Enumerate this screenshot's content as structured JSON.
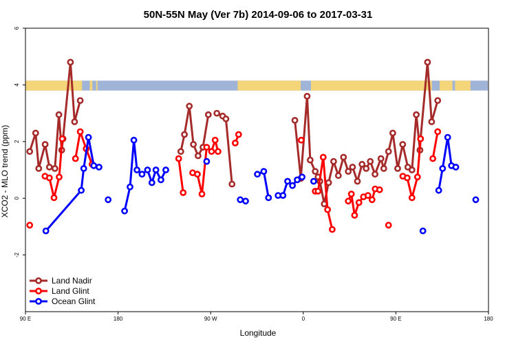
{
  "chart_data": {
    "type": "line",
    "title": "50N-55N May (Ver 7b)   2014-09-06 to 2017-03-31",
    "xlabel": "Longitude",
    "ylabel": "XCO2 - MLO trend (ppm)",
    "xlim": [
      90,
      450
    ],
    "ylim": [
      -4,
      6
    ],
    "grid": false,
    "legend_position": "bottom-left",
    "x_ticks": [
      {
        "value": 90,
        "label": "90 E"
      },
      {
        "value": 162,
        "label": "180"
      },
      {
        "value": 234,
        "label": "90 W"
      },
      {
        "value": 306,
        "label": "0"
      },
      {
        "value": 378,
        "label": "90 E"
      },
      {
        "value": 450,
        "label": "180"
      }
    ],
    "y_ticks": [
      {
        "value": -2,
        "label": "-2"
      },
      {
        "value": 0,
        "label": "0"
      },
      {
        "value": 2,
        "label": "2"
      },
      {
        "value": 4,
        "label": "4"
      },
      {
        "value": 6,
        "label": "6"
      }
    ],
    "band": {
      "y_min": 3.8,
      "y_max": 4.15,
      "land_color": "#f5d57a",
      "ocean_color": "#9fb4d6"
    },
    "series": [
      {
        "name": "Land Nadir",
        "color": "#a52a2a",
        "segments": [
          [
            [
              93.3,
              1.65
            ],
            [
              97.9,
              2.3
            ],
            [
              100.3,
              1.05
            ],
            [
              105.3,
              1.9
            ],
            [
              108.6,
              1.1
            ],
            [
              112.9,
              1.05
            ],
            [
              116.0,
              2.95
            ],
            [
              118.2,
              1.7
            ],
            [
              119.2,
              2.1
            ],
            [
              125.0,
              4.8
            ],
            [
              128.2,
              2.7
            ],
            [
              132.6,
              3.45
            ]
          ],
          [
            [
              210.8,
              1.65
            ],
            [
              213.6,
              2.25
            ],
            [
              217.4,
              3.25
            ],
            [
              220.6,
              1.9
            ],
            [
              224.2,
              1.5
            ],
            [
              228.0,
              1.8
            ],
            [
              232.2,
              2.95
            ]
          ],
          [
            [
              238.8,
              3.0
            ],
            [
              243.3,
              2.9
            ],
            [
              245.9,
              2.8
            ],
            [
              250.6,
              0.5
            ]
          ],
          [
            [
              299.5,
              2.75
            ],
            [
              304.1,
              0.7
            ],
            [
              309.0,
              3.6
            ],
            [
              311.4,
              1.35
            ],
            [
              315.3,
              0.95
            ],
            [
              317.5,
              0.75
            ],
            [
              318.9,
              0.6
            ],
            [
              322.3,
              -0.2
            ],
            [
              325.7,
              0.55
            ],
            [
              329.6,
              1.3
            ],
            [
              333.3,
              0.8
            ],
            [
              337.3,
              1.45
            ],
            [
              341.0,
              0.95
            ],
            [
              344.3,
              1.1
            ],
            [
              348.1,
              0.6
            ],
            [
              351.7,
              1.2
            ],
            [
              354.9,
              1.05
            ],
            [
              358.1,
              1.3
            ],
            [
              361.8,
              0.85
            ],
            [
              366.4,
              1.4
            ],
            [
              368.6,
              1.05
            ],
            [
              372.3,
              1.65
            ],
            [
              375.6,
              2.3
            ],
            [
              379.4,
              1.05
            ],
            [
              383.3,
              1.9
            ],
            [
              387.3,
              1.1
            ],
            [
              390.5,
              1.0
            ],
            [
              393.9,
              2.95
            ],
            [
              396.7,
              1.7
            ],
            [
              397.2,
              2.1
            ],
            [
              402.6,
              4.8
            ],
            [
              405.8,
              2.7
            ],
            [
              410.5,
              3.45
            ]
          ]
        ]
      },
      {
        "name": "Land Glint",
        "color": "#ff0000",
        "segments": [
          [
            [
              93.3,
              -0.95
            ]
          ],
          [
            [
              105.2,
              0.78
            ],
            [
              108.6,
              0.72
            ],
            [
              112.2,
              0.02
            ],
            [
              116.2,
              0.75
            ],
            [
              118.6,
              2.1
            ]
          ],
          [
            [
              128.9,
              1.4
            ],
            [
              132.6,
              2.35
            ],
            [
              137.2,
              1.75
            ],
            [
              141.8,
              1.2
            ]
          ],
          [
            [
              209.1,
              1.4
            ],
            [
              212.6,
              0.2
            ]
          ],
          [
            [
              220.0,
              0.9
            ],
            [
              223.7,
              0.85
            ],
            [
              227.2,
              0.15
            ],
            [
              230.9,
              1.8
            ],
            [
              234.7,
              1.65
            ],
            [
              237.5,
              2.05
            ],
            [
              239.7,
              1.65
            ]
          ],
          [
            [
              253.1,
              1.95
            ],
            [
              255.7,
              2.25
            ]
          ],
          [
            [
              304.4,
              2.05
            ]
          ],
          [
            [
              315.3,
              0.25
            ],
            [
              317.5,
              0.25
            ],
            [
              321.5,
              1.45
            ],
            [
              324.9,
              -0.4
            ],
            [
              328.5,
              -1.1
            ]
          ],
          [
            [
              341.0,
              -0.1
            ],
            [
              343.4,
              0.15
            ],
            [
              345.9,
              -0.6
            ],
            [
              349.3,
              -0.15
            ],
            [
              352.8,
              0.05
            ],
            [
              356.3,
              0.1
            ],
            [
              359.5,
              -0.05
            ],
            [
              361.9,
              0.33
            ],
            [
              365.3,
              0.3
            ]
          ],
          [
            [
              372.3,
              -0.95
            ]
          ],
          [
            [
              383.4,
              0.78
            ],
            [
              386.8,
              0.72
            ],
            [
              390.5,
              0.02
            ],
            [
              394.8,
              0.75
            ],
            [
              397.2,
              2.1
            ]
          ],
          [
            [
              406.7,
              1.4
            ],
            [
              410.5,
              2.35
            ]
          ]
        ]
      },
      {
        "name": "Ocean Glint",
        "color": "#0000ff",
        "segments": [
          [
            [
              105.9,
              -1.15
            ],
            [
              133.4,
              0.28
            ],
            [
              135.3,
              1.05
            ],
            [
              139.0,
              2.15
            ],
            [
              143.1,
              1.15
            ],
            [
              147.2,
              1.1
            ]
          ],
          [
            [
              154.3,
              -0.05
            ]
          ],
          [
            [
              167.1,
              -0.45
            ],
            [
              171.3,
              0.4
            ],
            [
              174.3,
              2.05
            ],
            [
              176.7,
              1.0
            ],
            [
              180.6,
              0.85
            ],
            [
              184.9,
              1.0
            ],
            [
              188.3,
              0.55
            ],
            [
              191.4,
              1.0
            ],
            [
              195.3,
              0.65
            ],
            [
              199.1,
              1.0
            ]
          ],
          [
            [
              230.9,
              1.3
            ]
          ],
          [
            [
              257.0,
              -0.05
            ],
            [
              261.2,
              -0.1
            ]
          ],
          [
            [
              270.3,
              0.85
            ],
            [
              275.3,
              0.95
            ],
            [
              279.0,
              0.02
            ]
          ],
          [
            [
              286.4,
              0.1
            ],
            [
              290.2,
              0.1
            ],
            [
              293.8,
              0.6
            ],
            [
              297.6,
              0.45
            ],
            [
              301.3,
              0.65
            ],
            [
              305.1,
              0.75
            ]
          ],
          [
            [
              314.1,
              0.6
            ]
          ],
          [
            [
              399.0,
              -1.15
            ]
          ],
          [
            [
              411.3,
              0.28
            ],
            [
              414.3,
              1.05
            ],
            [
              418.3,
              2.15
            ],
            [
              421.2,
              1.15
            ],
            [
              424.6,
              1.1
            ]
          ],
          [
            [
              440.1,
              -0.05
            ]
          ]
        ]
      }
    ]
  }
}
